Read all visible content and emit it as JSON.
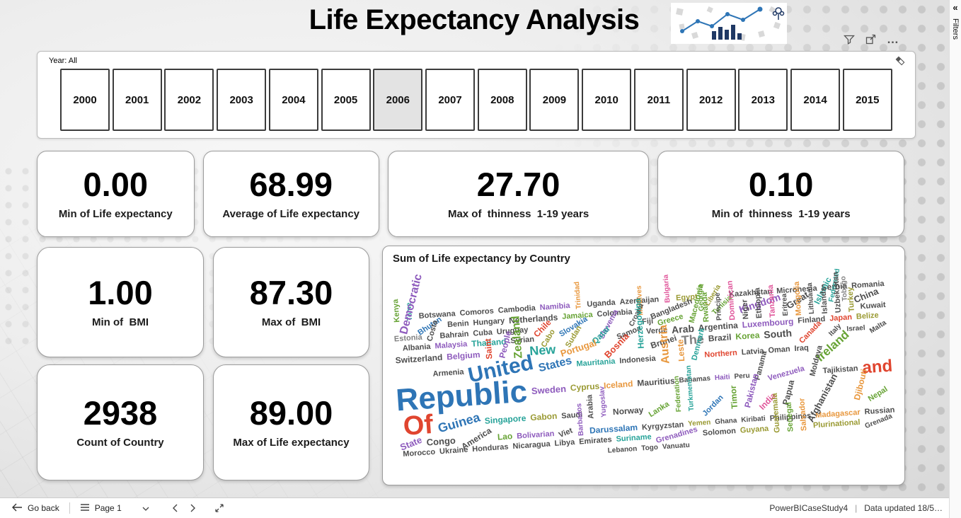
{
  "title": "Life Expectancy Analysis",
  "filters_pane": {
    "label": "Filters",
    "collapse_glyph": "«"
  },
  "visual_header": {
    "more_glyph": "…"
  },
  "year_slicer": {
    "label": "Year: All",
    "selected": "2006",
    "years": [
      "2000",
      "2001",
      "2002",
      "2003",
      "2004",
      "2005",
      "2006",
      "2007",
      "2008",
      "2009",
      "2010",
      "2011",
      "2012",
      "2013",
      "2014",
      "2015"
    ]
  },
  "kpi_cards": [
    {
      "value": "0.00",
      "label": "Min of Life expectancy"
    },
    {
      "value": "68.99",
      "label": "Average of Life expectancy"
    },
    {
      "value": "27.70",
      "label": "Max of  thinness  1-19 years"
    },
    {
      "value": "0.10",
      "label": "Min of  thinness  1-19 years"
    }
  ],
  "left_cards": [
    {
      "value": "1.00",
      "label": "Min of  BMI"
    },
    {
      "value": "87.30",
      "label": "Max of  BMI"
    },
    {
      "value": "2938",
      "label": "Count of Country"
    },
    {
      "value": "89.00",
      "label": "Max of Life expectancy"
    }
  ],
  "wordcloud": {
    "title": "Sum of Life expectancy by Country",
    "words": [
      {
        "t": "Kenya",
        "s": 11,
        "c": "#67a335",
        "r": -90
      },
      {
        "t": "Tome",
        "s": 10,
        "c": "#27a399",
        "r": -90
      },
      {
        "t": "Botswana",
        "s": 11,
        "c": "#4d4d4d",
        "r": 0
      },
      {
        "t": "Comoros",
        "s": 11,
        "c": "#4d4d4d",
        "r": 0
      },
      {
        "t": "Cambodia",
        "s": 11,
        "c": "#4d4d4d",
        "r": 0
      },
      {
        "t": "Namibia",
        "s": 11,
        "c": "#8e5bbd",
        "r": 0
      },
      {
        "t": "Trinidad",
        "s": 10,
        "c": "#e8973d",
        "r": -90
      },
      {
        "t": "Uganda",
        "s": 11,
        "c": "#4d4d4d",
        "r": 0
      },
      {
        "t": "Azerbaijan",
        "s": 11,
        "c": "#4d4d4d",
        "r": 0
      },
      {
        "t": "Bulgaria",
        "s": 10,
        "c": "#e0559a",
        "r": -90
      },
      {
        "t": "Egypt",
        "s": 11,
        "c": "#9a9a33",
        "r": 0
      },
      {
        "t": "Liberia",
        "s": 10,
        "c": "#9a9a33",
        "r": -55
      },
      {
        "t": "Kazakhstan",
        "s": 11,
        "c": "#4d4d4d",
        "r": 0
      },
      {
        "t": "Micronesia",
        "s": 11,
        "c": "#4d4d4d",
        "r": 0
      },
      {
        "t": "Serbia",
        "s": 12,
        "c": "#4d4d4d",
        "r": 0
      },
      {
        "t": "Romania",
        "s": 11,
        "c": "#4d4d4d",
        "r": 0
      },
      {
        "t": "Democratic",
        "s": 16,
        "c": "#8e5bbd",
        "r": -72
      },
      {
        "t": "Bhutan",
        "s": 11,
        "c": "#2e75b6",
        "r": -30
      },
      {
        "t": "Benin",
        "s": 11,
        "c": "#4d4d4d",
        "r": 0
      },
      {
        "t": "Hungary",
        "s": 11,
        "c": "#4d4d4d",
        "r": 0
      },
      {
        "t": "Netherlands",
        "s": 12,
        "c": "#4d4d4d",
        "r": 0
      },
      {
        "t": "Jamaica",
        "s": 11,
        "c": "#67a335",
        "r": 0
      },
      {
        "t": "Colombia",
        "s": 11,
        "c": "#4d4d4d",
        "r": 0
      },
      {
        "t": "Maldives",
        "s": 10,
        "c": "#e8973d",
        "r": -90
      },
      {
        "t": "Bangladesh",
        "s": 11,
        "c": "#4d4d4d",
        "r": -18
      },
      {
        "t": "Georgia",
        "s": 10,
        "c": "#67a335",
        "r": -90
      },
      {
        "t": "Tunisia",
        "s": 10,
        "c": "#67a335",
        "r": -40
      },
      {
        "t": "Kingdom",
        "s": 14,
        "c": "#8e5bbd",
        "r": -14
      },
      {
        "t": "Great",
        "s": 13,
        "c": "#4d4d4d",
        "r": -28
      },
      {
        "t": "Islamic",
        "s": 12,
        "c": "#27a399",
        "r": -60
      },
      {
        "t": "Federated",
        "s": 10,
        "c": "#27a399",
        "r": -75
      },
      {
        "t": "Tobago",
        "s": 10,
        "c": "#808080",
        "r": -90
      },
      {
        "t": "China",
        "s": 13,
        "c": "#4d4d4d",
        "r": -18
      },
      {
        "t": "Estonia",
        "s": 11,
        "c": "#808080",
        "r": 0
      },
      {
        "t": "Costa",
        "s": 11,
        "c": "#4d4d4d",
        "r": -70
      },
      {
        "t": "Bahrain",
        "s": 11,
        "c": "#4d4d4d",
        "r": 0
      },
      {
        "t": "Cuba",
        "s": 11,
        "c": "#4d4d4d",
        "r": 0
      },
      {
        "t": "Uruguay",
        "s": 11,
        "c": "#4d4d4d",
        "r": 0
      },
      {
        "t": "Chile",
        "s": 12,
        "c": "#e0452f",
        "r": -42
      },
      {
        "t": "Slovakia",
        "s": 11,
        "c": "#2e75b6",
        "r": -28
      },
      {
        "t": "Slovenia",
        "s": 11,
        "c": "#8e5bbd",
        "r": -58
      },
      {
        "t": "Croatia",
        "s": 10,
        "c": "#4d4d4d",
        "r": -60
      },
      {
        "t": "Fiji",
        "s": 11,
        "c": "#4d4d4d",
        "r": 0
      },
      {
        "t": "Greece",
        "s": 11,
        "c": "#67a335",
        "r": -12
      },
      {
        "t": "Macedonia",
        "s": 11,
        "c": "#67a335",
        "r": -72
      },
      {
        "t": "Rwanda",
        "s": 11,
        "c": "#67a335",
        "r": -90
      },
      {
        "t": "Principe",
        "s": 10,
        "c": "#4d4d4d",
        "r": -90
      },
      {
        "t": "Dominican",
        "s": 11,
        "c": "#e0559a",
        "r": -90
      },
      {
        "t": "Niger",
        "s": 11,
        "c": "#4d4d4d",
        "r": -90
      },
      {
        "t": "Ethiopia",
        "s": 11,
        "c": "#4d4d4d",
        "r": -90
      },
      {
        "t": "Tanzania",
        "s": 11,
        "c": "#e0559a",
        "r": -90
      },
      {
        "t": "Eritrea",
        "s": 10,
        "c": "#4d4d4d",
        "r": -90
      },
      {
        "t": "Mongolia",
        "s": 11,
        "c": "#e8973d",
        "r": -90
      },
      {
        "t": "Lithuania",
        "s": 10,
        "c": "#4d4d4d",
        "r": -90
      },
      {
        "t": "Islands",
        "s": 11,
        "c": "#4d4d4d",
        "r": -90
      },
      {
        "t": "Uzbekistan",
        "s": 11,
        "c": "#4d4d4d",
        "r": -90
      },
      {
        "t": "Turkey",
        "s": 11,
        "c": "#9a9a33",
        "r": -90
      },
      {
        "t": "Kuwait",
        "s": 11,
        "c": "#4d4d4d",
        "r": 0
      },
      {
        "t": "Albania",
        "s": 11,
        "c": "#4d4d4d",
        "r": 0
      },
      {
        "t": "Malaysia",
        "s": 11,
        "c": "#8e5bbd",
        "r": 0
      },
      {
        "t": "Thailand",
        "s": 12,
        "c": "#27a399",
        "r": 0
      },
      {
        "t": "Syrian",
        "s": 11,
        "c": "#4d4d4d",
        "r": 0
      },
      {
        "t": "Cabo",
        "s": 11,
        "c": "#9a9a33",
        "r": -55
      },
      {
        "t": "Sudan",
        "s": 11,
        "c": "#9a9a33",
        "r": -55
      },
      {
        "t": "Qatar",
        "s": 12,
        "c": "#27a399",
        "r": -42
      },
      {
        "t": "Samoa",
        "s": 11,
        "c": "#4d4d4d",
        "r": -18
      },
      {
        "t": "Verde",
        "s": 11,
        "c": "#4d4d4d",
        "r": 0
      },
      {
        "t": "Arab",
        "s": 14,
        "c": "#4d4d4d",
        "r": 0
      },
      {
        "t": "Argentina",
        "s": 12,
        "c": "#4d4d4d",
        "r": 0
      },
      {
        "t": "Luxembourg",
        "s": 12,
        "c": "#8e5bbd",
        "r": 0
      },
      {
        "t": "Finland",
        "s": 11,
        "c": "#4d4d4d",
        "r": 0
      },
      {
        "t": "Japan",
        "s": 11,
        "c": "#e0452f",
        "r": 0
      },
      {
        "t": "Belize",
        "s": 11,
        "c": "#9a9a33",
        "r": 0
      },
      {
        "t": "Switzerland",
        "s": 12,
        "c": "#4d4d4d",
        "r": 0
      },
      {
        "t": "Belgium",
        "s": 12,
        "c": "#8e5bbd",
        "r": 0
      },
      {
        "t": "Saint",
        "s": 12,
        "c": "#e0452f",
        "r": -90
      },
      {
        "t": "People",
        "s": 12,
        "c": "#8e5bbd",
        "r": -72
      },
      {
        "t": "Zealand",
        "s": 16,
        "c": "#67a335",
        "r": -90
      },
      {
        "t": "New",
        "s": 18,
        "c": "#27a399",
        "r": 0
      },
      {
        "t": "Portugal",
        "s": 13,
        "c": "#e8973d",
        "r": -14
      },
      {
        "t": "Bosnia",
        "s": 13,
        "c": "#e0452f",
        "r": -42
      },
      {
        "t": "Herzegovina",
        "s": 12,
        "c": "#27a399",
        "r": -90
      },
      {
        "t": "Brunei",
        "s": 12,
        "c": "#4d4d4d",
        "r": -14
      },
      {
        "t": "The",
        "s": 18,
        "c": "#808080",
        "r": 0
      },
      {
        "t": "Brazil",
        "s": 12,
        "c": "#4d4d4d",
        "r": 0
      },
      {
        "t": "Korea",
        "s": 12,
        "c": "#67a335",
        "r": 0
      },
      {
        "t": "South",
        "s": 14,
        "c": "#4d4d4d",
        "r": 0
      },
      {
        "t": "Canada",
        "s": 11,
        "c": "#e0452f",
        "r": -42
      },
      {
        "t": "Italy",
        "s": 10,
        "c": "#4d4d4d",
        "r": -42
      },
      {
        "t": "Israel",
        "s": 10,
        "c": "#4d4d4d",
        "r": 0
      },
      {
        "t": "Malta",
        "s": 10,
        "c": "#4d4d4d",
        "r": -28
      },
      {
        "t": "Armenia",
        "s": 11,
        "c": "#4d4d4d",
        "r": 0
      },
      {
        "t": "United",
        "s": 30,
        "c": "#2e75b6",
        "r": -8
      },
      {
        "t": "States",
        "s": 16,
        "c": "#2e75b6",
        "r": -10
      },
      {
        "t": "Mauritania",
        "s": 11,
        "c": "#27a399",
        "r": 0
      },
      {
        "t": "Indonesia",
        "s": 11,
        "c": "#4d4d4d",
        "r": 0
      },
      {
        "t": "Austria",
        "s": 16,
        "c": "#e8973d",
        "r": -90
      },
      {
        "t": "Leste",
        "s": 12,
        "c": "#e8973d",
        "r": -90
      },
      {
        "t": "Denmark",
        "s": 11,
        "c": "#27a399",
        "r": -72
      },
      {
        "t": "Northern",
        "s": 11,
        "c": "#e0452f",
        "r": 0
      },
      {
        "t": "Latvia",
        "s": 11,
        "c": "#4d4d4d",
        "r": 0
      },
      {
        "t": "Oman",
        "s": 11,
        "c": "#4d4d4d",
        "r": 0
      },
      {
        "t": "Iraq",
        "s": 11,
        "c": "#4d4d4d",
        "r": 0
      },
      {
        "t": "Ireland",
        "s": 17,
        "c": "#67a335",
        "r": -38
      },
      {
        "t": "Republic",
        "s": 44,
        "c": "#2e75b6",
        "r": 0
      },
      {
        "t": "Sweden",
        "s": 13,
        "c": "#8e5bbd",
        "r": 0
      },
      {
        "t": "Cyprus",
        "s": 12,
        "c": "#9a9a33",
        "r": 0
      },
      {
        "t": "Iceland",
        "s": 12,
        "c": "#e8973d",
        "r": 0
      },
      {
        "t": "Mauritius",
        "s": 12,
        "c": "#4d4d4d",
        "r": 0
      },
      {
        "t": "Bahamas",
        "s": 10,
        "c": "#4d4d4d",
        "r": 0
      },
      {
        "t": "Haiti",
        "s": 10,
        "c": "#8e5bbd",
        "r": 0
      },
      {
        "t": "Peru",
        "s": 10,
        "c": "#4d4d4d",
        "r": 0
      },
      {
        "t": "Panama",
        "s": 11,
        "c": "#4d4d4d",
        "r": -72
      },
      {
        "t": "Venezuela",
        "s": 11,
        "c": "#8e5bbd",
        "r": -12
      },
      {
        "t": "Moldova",
        "s": 11,
        "c": "#4d4d4d",
        "r": -72
      },
      {
        "t": "Tajikistan",
        "s": 11,
        "c": "#4d4d4d",
        "r": 0
      },
      {
        "t": "and",
        "s": 24,
        "c": "#e0452f",
        "r": 0
      },
      {
        "t": "Of",
        "s": 38,
        "c": "#e0452f",
        "r": 0
      },
      {
        "t": "Guinea",
        "s": 18,
        "c": "#2e75b6",
        "r": -12
      },
      {
        "t": "Singapore",
        "s": 12,
        "c": "#27a399",
        "r": 0
      },
      {
        "t": "Gabon",
        "s": 12,
        "c": "#9a9a33",
        "r": 0
      },
      {
        "t": "Saudi",
        "s": 11,
        "c": "#4d4d4d",
        "r": 0
      },
      {
        "t": "Arabia",
        "s": 11,
        "c": "#4d4d4d",
        "r": -90
      },
      {
        "t": "Yugoslav",
        "s": 10,
        "c": "#8e5bbd",
        "r": -90
      },
      {
        "t": "Norway",
        "s": 12,
        "c": "#4d4d4d",
        "r": 0
      },
      {
        "t": "Lanka",
        "s": 11,
        "c": "#67a335",
        "r": -28
      },
      {
        "t": "Federation",
        "s": 10,
        "c": "#67a335",
        "r": -90
      },
      {
        "t": "Turkmenistan",
        "s": 10,
        "c": "#27a399",
        "r": -90
      },
      {
        "t": "Jordan",
        "s": 11,
        "c": "#2e75b6",
        "r": -42
      },
      {
        "t": "Timor",
        "s": 12,
        "c": "#67a335",
        "r": -90
      },
      {
        "t": "Pakistan",
        "s": 12,
        "c": "#8e5bbd",
        "r": -72
      },
      {
        "t": "India",
        "s": 12,
        "c": "#e0559a",
        "r": -42
      },
      {
        "t": "Papua",
        "s": 12,
        "c": "#4d4d4d",
        "r": -72
      },
      {
        "t": "Afghanistan",
        "s": 13,
        "c": "#4d4d4d",
        "r": -58
      },
      {
        "t": "Djibouti",
        "s": 12,
        "c": "#e8973d",
        "r": -72
      },
      {
        "t": "Nepal",
        "s": 11,
        "c": "#67a335",
        "r": -28
      },
      {
        "t": "State",
        "s": 13,
        "c": "#8e5bbd",
        "r": -18
      },
      {
        "t": "Congo",
        "s": 13,
        "c": "#4d4d4d",
        "r": 0
      },
      {
        "t": "America",
        "s": 12,
        "c": "#4d4d4d",
        "r": -28
      },
      {
        "t": "Lao",
        "s": 12,
        "c": "#67a335",
        "r": 0
      },
      {
        "t": "Bolivarian",
        "s": 11,
        "c": "#8e5bbd",
        "r": 0
      },
      {
        "t": "Viet",
        "s": 11,
        "c": "#4d4d4d",
        "r": -18
      },
      {
        "t": "Barbados",
        "s": 10,
        "c": "#8e5bbd",
        "r": -90
      },
      {
        "t": "Darussalam",
        "s": 12,
        "c": "#2e75b6",
        "r": 0
      },
      {
        "t": "Kyrgyzstan",
        "s": 11,
        "c": "#4d4d4d",
        "r": 0
      },
      {
        "t": "Yemen",
        "s": 10,
        "c": "#9a9a33",
        "r": 0
      },
      {
        "t": "Ghana",
        "s": 10,
        "c": "#4d4d4d",
        "r": 0
      },
      {
        "t": "Kiribati",
        "s": 10,
        "c": "#4d4d4d",
        "r": 0
      },
      {
        "t": "Philippines",
        "s": 11,
        "c": "#4d4d4d",
        "r": 0
      },
      {
        "t": "Madagascar",
        "s": 11,
        "c": "#e8973d",
        "r": 0
      },
      {
        "t": "Russian",
        "s": 11,
        "c": "#4d4d4d",
        "r": 0
      },
      {
        "t": "Morocco",
        "s": 11,
        "c": "#4d4d4d",
        "r": 0
      },
      {
        "t": "Ukraine",
        "s": 11,
        "c": "#4d4d4d",
        "r": 0
      },
      {
        "t": "Honduras",
        "s": 11,
        "c": "#4d4d4d",
        "r": 0
      },
      {
        "t": "Nicaragua",
        "s": 11,
        "c": "#4d4d4d",
        "r": 0
      },
      {
        "t": "Libya",
        "s": 11,
        "c": "#4d4d4d",
        "r": 0
      },
      {
        "t": "Emirates",
        "s": 11,
        "c": "#4d4d4d",
        "r": 0
      },
      {
        "t": "Suriname",
        "s": 11,
        "c": "#27a399",
        "r": 0
      },
      {
        "t": "Grenadines",
        "s": 11,
        "c": "#8e5bbd",
        "r": -12
      },
      {
        "t": "Solomon",
        "s": 11,
        "c": "#4d4d4d",
        "r": 0
      },
      {
        "t": "Guyana",
        "s": 11,
        "c": "#9a9a33",
        "r": 0
      },
      {
        "t": "Guatemala",
        "s": 11,
        "c": "#9a9a33",
        "r": -90
      },
      {
        "t": "Senegal",
        "s": 11,
        "c": "#67a335",
        "r": -90
      },
      {
        "t": "Salvador",
        "s": 11,
        "c": "#e8973d",
        "r": -90
      },
      {
        "t": "Plurinational",
        "s": 11,
        "c": "#9a9a33",
        "r": 0
      },
      {
        "t": "Grenada",
        "s": 10,
        "c": "#4d4d4d",
        "r": -18
      },
      {
        "t": "Lebanon",
        "s": 10,
        "c": "#4d4d4d",
        "r": 0
      },
      {
        "t": "Togo",
        "s": 10,
        "c": "#4d4d4d",
        "r": 0
      },
      {
        "t": "Vanuatu",
        "s": 10,
        "c": "#4d4d4d",
        "r": 0
      }
    ]
  },
  "bottom_bar": {
    "go_back": "Go back",
    "page": "Page 1",
    "file_name": "PowerBICaseStudy4",
    "separator": "|",
    "data_updated": "Data updated 18/5…"
  }
}
